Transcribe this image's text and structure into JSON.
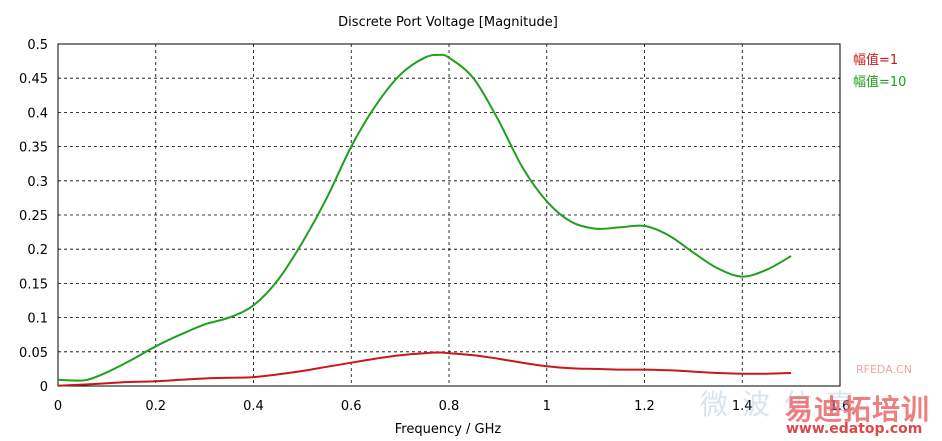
{
  "chart_data": {
    "type": "line",
    "title": "Discrete Port Voltage [Magnitude]",
    "xlabel": "Frequency / GHz",
    "ylabel": "",
    "xlim": [
      0,
      1.6
    ],
    "ylim": [
      0,
      0.5
    ],
    "x_ticks": [
      "0",
      "0.2",
      "0.4",
      "0.6",
      "0.8",
      "1",
      "1.2",
      "1.4",
      "1.6"
    ],
    "y_ticks": [
      "0",
      "0.05",
      "0.1",
      "0.15",
      "0.2",
      "0.25",
      "0.3",
      "0.35",
      "0.4",
      "0.45",
      "0.5"
    ],
    "grid": true,
    "legend_position": "right",
    "series": [
      {
        "name": "幅值=1",
        "color": "#c81818",
        "x": [
          0,
          0.05,
          0.1,
          0.15,
          0.2,
          0.25,
          0.3,
          0.35,
          0.4,
          0.45,
          0.5,
          0.55,
          0.6,
          0.65,
          0.7,
          0.75,
          0.78,
          0.8,
          0.85,
          0.9,
          0.95,
          1.0,
          1.05,
          1.1,
          1.15,
          1.2,
          1.25,
          1.3,
          1.35,
          1.4,
          1.45,
          1.5
        ],
        "y": [
          0.0005,
          0.002,
          0.004,
          0.006,
          0.007,
          0.009,
          0.011,
          0.012,
          0.013,
          0.017,
          0.022,
          0.028,
          0.034,
          0.04,
          0.045,
          0.048,
          0.049,
          0.048,
          0.045,
          0.04,
          0.034,
          0.029,
          0.026,
          0.025,
          0.024,
          0.024,
          0.023,
          0.021,
          0.019,
          0.018,
          0.018,
          0.019
        ]
      },
      {
        "name": "幅值=10",
        "color": "#1ea01e",
        "x": [
          0,
          0.03,
          0.06,
          0.1,
          0.15,
          0.2,
          0.25,
          0.3,
          0.35,
          0.4,
          0.45,
          0.5,
          0.55,
          0.6,
          0.65,
          0.7,
          0.75,
          0.78,
          0.8,
          0.85,
          0.9,
          0.95,
          1.0,
          1.05,
          1.1,
          1.15,
          1.2,
          1.25,
          1.3,
          1.35,
          1.4,
          1.45,
          1.5
        ],
        "y": [
          0.009,
          0.008,
          0.009,
          0.02,
          0.038,
          0.058,
          0.075,
          0.09,
          0.1,
          0.118,
          0.155,
          0.21,
          0.275,
          0.35,
          0.41,
          0.455,
          0.48,
          0.484,
          0.48,
          0.45,
          0.39,
          0.32,
          0.27,
          0.24,
          0.23,
          0.232,
          0.234,
          0.22,
          0.195,
          0.172,
          0.16,
          0.17,
          0.19
        ]
      }
    ]
  },
  "watermark": {
    "site": "RFEDA.CN",
    "brand": "易迪拓培训",
    "url": "www.edatop.com",
    "faint": "微波仿真"
  }
}
